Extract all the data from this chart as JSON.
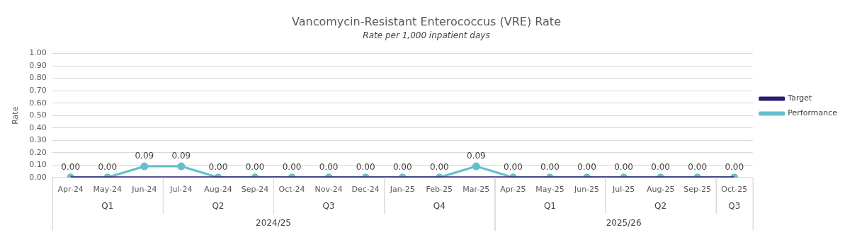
{
  "chart_data": {
    "type": "line",
    "title": "Vancomycin-Resistant Enterococcus (VRE) Rate",
    "subtitle": "Rate per 1,000 inpatient days",
    "ylabel": "Rate",
    "categories": [
      "Apr-24",
      "May-24",
      "Jun-24",
      "Jul-24",
      "Aug-24",
      "Sep-24",
      "Oct-24",
      "Nov-24",
      "Dec-24",
      "Jan-25",
      "Feb-25",
      "Mar-25",
      "Apr-25",
      "May-25",
      "Jun-25",
      "Jul-25",
      "Aug-25",
      "Sep-25",
      "Oct-25"
    ],
    "series": [
      {
        "name": "Target",
        "color": "#2e1a6e",
        "marker": "none",
        "values": [
          0,
          0,
          0,
          0,
          0,
          0,
          0,
          0,
          0,
          0,
          0,
          0,
          0,
          0,
          0,
          0,
          0,
          0,
          0
        ]
      },
      {
        "name": "Performance",
        "color": "#63bfcc",
        "marker": "circle",
        "values": [
          0,
          0,
          0.09,
          0.09,
          0,
          0,
          0,
          0,
          0,
          0,
          0,
          0.09,
          0,
          0,
          0,
          0,
          0,
          0,
          0
        ],
        "value_labels": [
          "0.00",
          "0.00",
          "0.09",
          "0.09",
          "0.00",
          "0.00",
          "0.00",
          "0.00",
          "0.00",
          "0.00",
          "0.00",
          "0.09",
          "0.00",
          "0.00",
          "0.00",
          "0.00",
          "0.00",
          "0.00",
          "0.00"
        ]
      }
    ],
    "ylim": [
      0,
      1
    ],
    "yticks": [
      {
        "value": 0,
        "label": "0.00"
      },
      {
        "value": 0.1,
        "label": "0.10"
      },
      {
        "value": 0.2,
        "label": "0.20"
      },
      {
        "value": 0.3,
        "label": "0.30"
      },
      {
        "value": 0.4,
        "label": "0.40"
      },
      {
        "value": 0.5,
        "label": "0.50"
      },
      {
        "value": 0.6,
        "label": "0.60"
      },
      {
        "value": 0.7,
        "label": "0.70"
      },
      {
        "value": 0.8,
        "label": "0.80"
      },
      {
        "value": 0.9,
        "label": "0.90"
      },
      {
        "value": 1,
        "label": "1.00"
      }
    ],
    "grid": "y",
    "legend": "right",
    "line_style": "solid",
    "annotations": [
      "Q1",
      "Q2",
      "Q3",
      "Q4",
      "Q1",
      "Q2",
      "Q3",
      "2024/25",
      "2025/26"
    ]
  }
}
